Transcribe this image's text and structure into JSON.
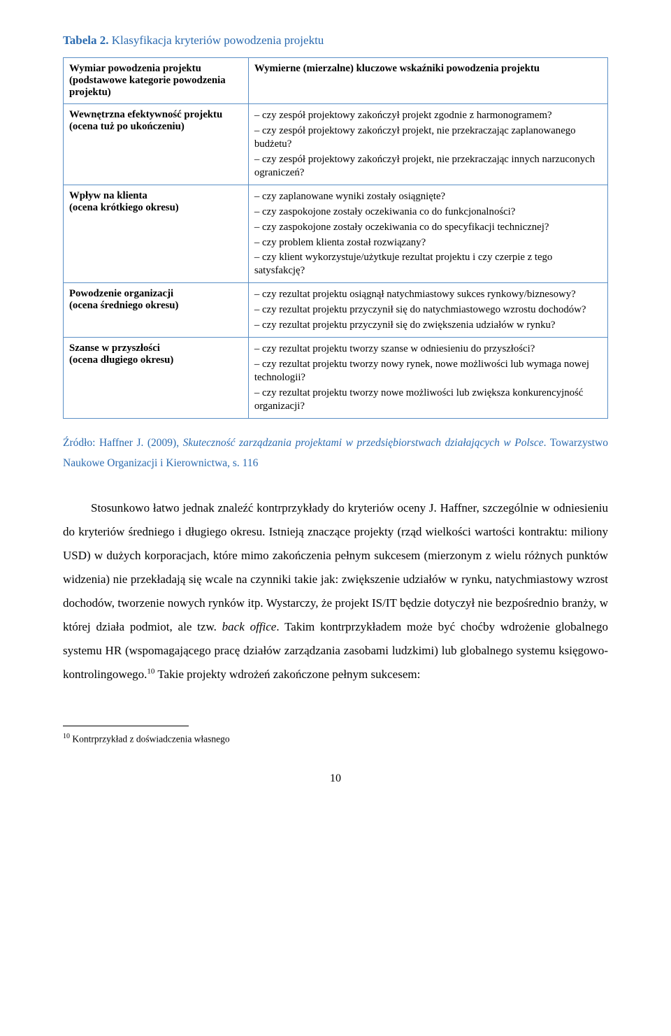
{
  "caption": {
    "label": "Tabela 2.",
    "title": "Klasyfikacja kryteriów powodzenia projektu"
  },
  "table": {
    "header": {
      "left": "Wymiar powodzenia projektu (podstawowe kategorie powodzenia projektu)",
      "right": "Wymierne (mierzalne) kluczowe wskaźniki powodzenia projektu"
    },
    "rows": [
      {
        "left_title": "Wewnętrzna efektywność projektu",
        "left_sub": "(ocena tuż po ukończeniu)",
        "items": [
          "– czy zespół projektowy zakończył projekt zgodnie z harmonogramem?",
          "– czy zespół projektowy zakończył projekt, nie przekraczając zaplanowanego budżetu?",
          "– czy zespół projektowy zakończył projekt, nie przekraczając innych narzuconych ograniczeń?"
        ]
      },
      {
        "left_title": "Wpływ na klienta",
        "left_sub": "(ocena krótkiego okresu)",
        "items": [
          "– czy zaplanowane wyniki zostały osiągnięte?",
          "– czy zaspokojone zostały oczekiwania co do funkcjonalności?",
          "– czy zaspokojone zostały oczekiwania co do specyfikacji technicznej?",
          "– czy problem klienta został rozwiązany?",
          "– czy klient wykorzystuje/użytkuje rezultat projektu i czy czerpie z tego satysfakcję?"
        ]
      },
      {
        "left_title": "Powodzenie organizacji",
        "left_sub": "(ocena średniego okresu)",
        "items": [
          "– czy rezultat projektu osiągnął natychmiastowy sukces rynkowy/biznesowy?",
          "– czy rezultat projektu przyczynił się do natychmiastowego wzrostu dochodów?",
          "– czy rezultat projektu przyczynił się do zwiększenia udziałów w rynku?"
        ]
      },
      {
        "left_title": "Szanse w przyszłości",
        "left_sub": "(ocena długiego okresu)",
        "items": [
          "– czy rezultat projektu tworzy szanse w odniesieniu do przyszłości?",
          "– czy rezultat projektu tworzy nowy rynek, nowe możliwości lub wymaga nowej technologii?",
          "– czy rezultat projektu tworzy nowe możliwości lub zwiększa konkurencyjność organizacji?"
        ]
      }
    ]
  },
  "source": {
    "prefix": "Źródło: Haffner J. (2009), ",
    "italic": "Skuteczność zarządzania projektami w przedsiębiorstwach działających w Polsce",
    "suffix": ". Towarzystwo Naukowe Organizacji i Kierownictwa, s. 116"
  },
  "body": {
    "p1a": "Stosunkowo łatwo jednak znaleźć kontrprzykłady do kryteriów oceny J. Haffner, szczególnie w odniesieniu do kryteriów średniego i długiego okresu. Istnieją znaczące projekty (rząd wielkości wartości kontraktu: miliony USD) w dużych korporacjach, które mimo zakończenia pełnym sukcesem (mierzonym z wielu różnych punktów widzenia) nie przekładają się wcale na czynniki takie jak: zwiększenie udziałów w rynku, natychmiastowy wzrost dochodów, tworzenie nowych rynków itp. Wystarczy, że projekt IS/IT będzie dotyczył nie bezpośrednio branży, w której działa podmiot, ale tzw. ",
    "p1_italic": "back office",
    "p1b": ". Takim kontrprzykładem może być choćby wdrożenie globalnego systemu HR (wspomagającego pracę działów zarządzania zasobami ludzkimi) lub globalnego systemu księgowo-kontrolingowego.",
    "p1_sup": "10",
    "p1c": " Takie projekty wdrożeń zakończone pełnym sukcesem:"
  },
  "footnote": {
    "num": "10",
    "text": " Kontrprzykład z doświadczenia własnego"
  },
  "page_number": "10"
}
